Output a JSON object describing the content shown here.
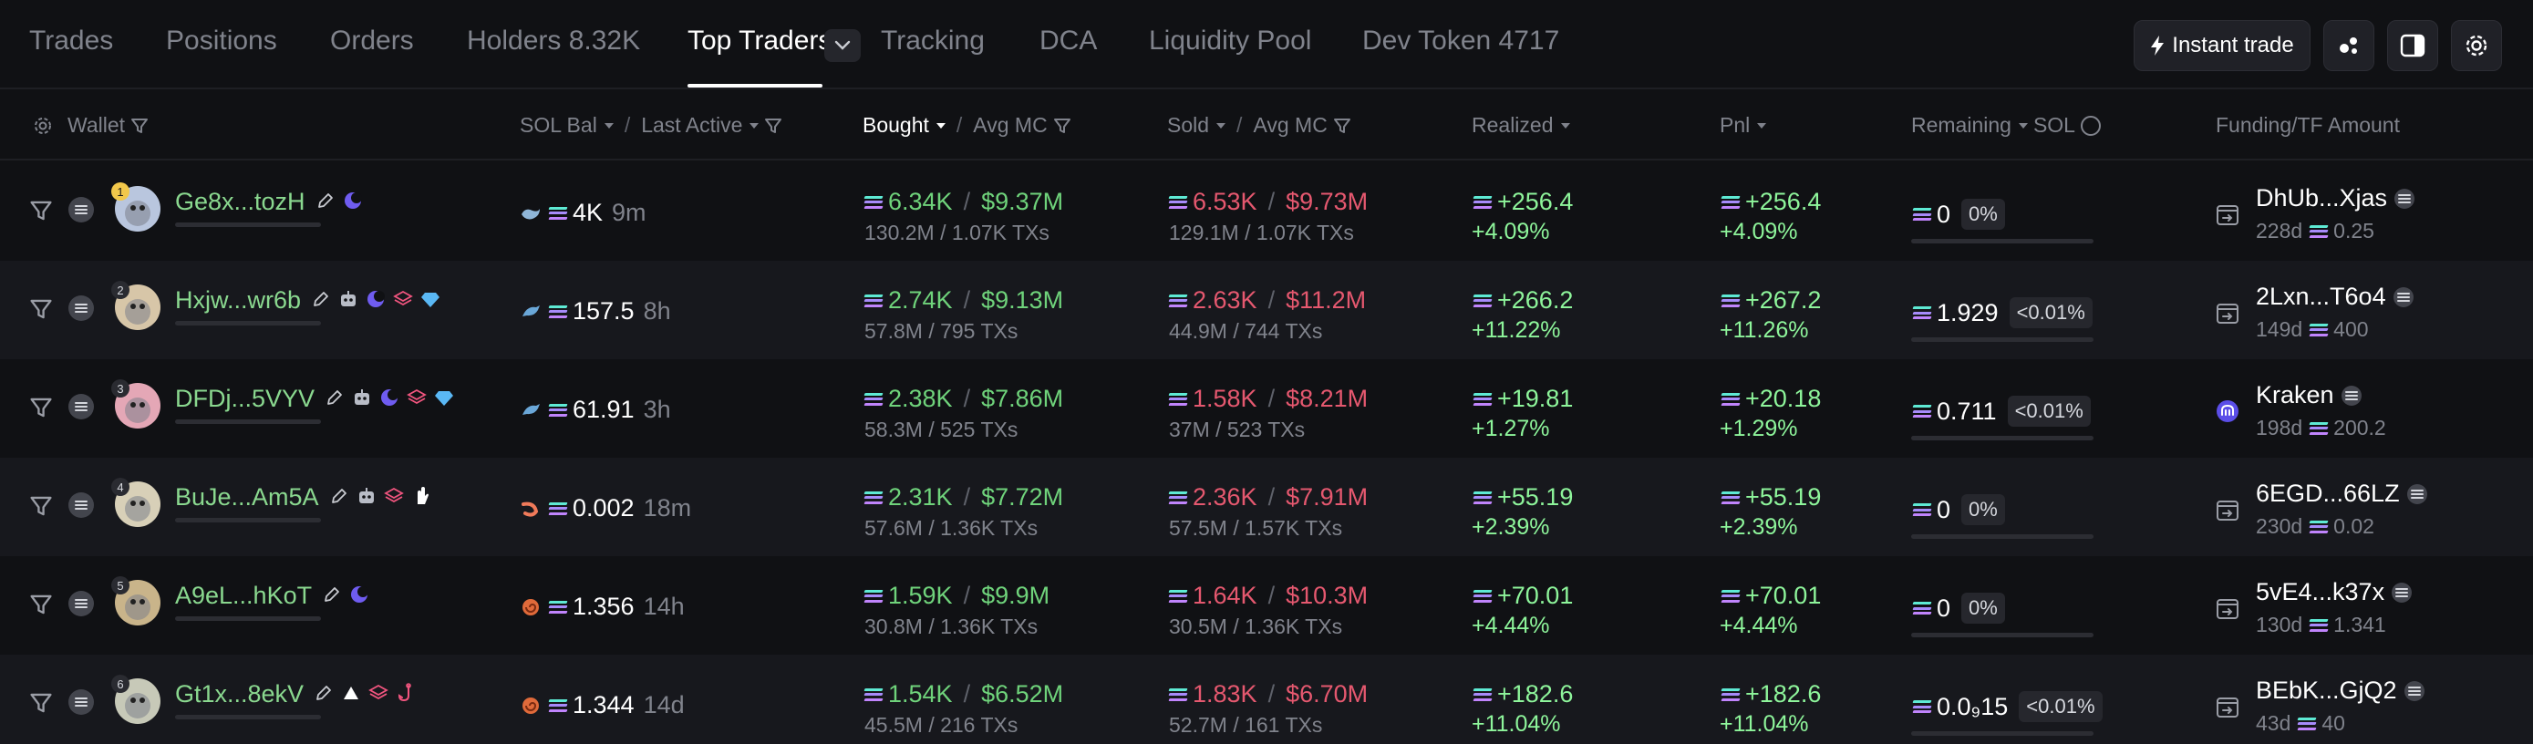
{
  "tabs": [
    {
      "label": "Trades"
    },
    {
      "label": "Positions"
    },
    {
      "label": "Orders"
    },
    {
      "label": "Holders 8.32K"
    },
    {
      "label": "Top Traders"
    },
    {
      "label": "Tracking"
    },
    {
      "label": "DCA"
    },
    {
      "label": "Liquidity Pool"
    },
    {
      "label": "Dev Token 4717"
    }
  ],
  "toolbar": {
    "instant_trade": "Instant trade"
  },
  "columns": {
    "wallet": "Wallet",
    "sol_bal": "SOL Bal",
    "last_active": "Last Active",
    "bought": "Bought",
    "avg_mc": "Avg MC",
    "sold": "Sold",
    "realized": "Realized",
    "pnl": "Pnl",
    "remaining": "Remaining",
    "sol": "SOL",
    "funding": "Funding/TF Amount"
  },
  "colors": {
    "green": "#6fd37b",
    "red": "#e5586f",
    "wallet": "#8ad88f",
    "pnl": "#8ef59b"
  },
  "rows": [
    {
      "rank": "1",
      "wallet": "Ge8x...tozH",
      "tags": [
        "edit-icon",
        "moon-icon"
      ],
      "bal_icon": "whale-icon",
      "bal": "4K",
      "last": "9m",
      "bought": "6.34K",
      "bought_mc": "$9.37M",
      "bought_sub": "130.2M / 1.07K TXs",
      "sold": "6.53K",
      "sold_mc": "$9.73M",
      "sold_sub": "129.1M / 1.07K TXs",
      "realized": "+256.4",
      "realized_pct": "+4.09%",
      "pnl": "+256.4",
      "pnl_pct": "+4.09%",
      "remaining": "0",
      "remaining_pct": "0%",
      "fund_icon": "transfer-icon",
      "fund_name": "DhUb...Xjas",
      "fund_age": "228d",
      "fund_amt": "0.25"
    },
    {
      "rank": "2",
      "wallet": "Hxjw...wr6b",
      "tags": [
        "edit-icon",
        "bot-icon",
        "moon-icon",
        "layers-icon",
        "diamond-icon"
      ],
      "bal_icon": "dolphin-icon",
      "bal": "157.5",
      "last": "8h",
      "bought": "2.74K",
      "bought_mc": "$9.13M",
      "bought_sub": "57.8M / 795 TXs",
      "sold": "2.63K",
      "sold_mc": "$11.2M",
      "sold_sub": "44.9M / 744 TXs",
      "realized": "+266.2",
      "realized_pct": "+11.22%",
      "pnl": "+267.2",
      "pnl_pct": "+11.26%",
      "remaining": "1.929",
      "remaining_pct": "<0.01%",
      "fund_icon": "transfer-icon",
      "fund_name": "2Lxn...T6o4",
      "fund_age": "149d",
      "fund_amt": "400"
    },
    {
      "rank": "3",
      "wallet": "DFDj...5VYV",
      "tags": [
        "edit-icon",
        "bot-icon",
        "moon-icon",
        "layers-icon",
        "diamond-icon"
      ],
      "bal_icon": "dolphin-icon",
      "bal": "61.91",
      "last": "3h",
      "bought": "2.38K",
      "bought_mc": "$7.86M",
      "bought_sub": "58.3M / 525 TXs",
      "sold": "1.58K",
      "sold_mc": "$8.21M",
      "sold_sub": "37M / 523 TXs",
      "realized": "+19.81",
      "realized_pct": "+1.27%",
      "pnl": "+20.18",
      "pnl_pct": "+1.29%",
      "remaining": "0.711",
      "remaining_pct": "<0.01%",
      "fund_icon": "kraken-icon",
      "fund_name": "Kraken",
      "fund_age": "198d",
      "fund_amt": "200.2"
    },
    {
      "rank": "4",
      "wallet": "BuJe...Am5A",
      "tags": [
        "edit-icon",
        "bot-icon",
        "layers-icon",
        "paper-hand-icon"
      ],
      "bal_icon": "shrimp-icon",
      "bal": "0.002",
      "last": "18m",
      "bought": "2.31K",
      "bought_mc": "$7.72M",
      "bought_sub": "57.6M / 1.36K TXs",
      "sold": "2.36K",
      "sold_mc": "$7.91M",
      "sold_sub": "57.5M / 1.57K TXs",
      "realized": "+55.19",
      "realized_pct": "+2.39%",
      "pnl": "+55.19",
      "pnl_pct": "+2.39%",
      "remaining": "0",
      "remaining_pct": "0%",
      "fund_icon": "transfer-icon",
      "fund_name": "6EGD...66LZ",
      "fund_age": "230d",
      "fund_amt": "0.02"
    },
    {
      "rank": "5",
      "wallet": "A9eL...hKoT",
      "tags": [
        "edit-icon",
        "moon-icon"
      ],
      "bal_icon": "shell-icon",
      "bal": "1.356",
      "last": "14h",
      "bought": "1.59K",
      "bought_mc": "$9.9M",
      "bought_sub": "30.8M / 1.36K TXs",
      "sold": "1.64K",
      "sold_mc": "$10.3M",
      "sold_sub": "30.5M / 1.36K TXs",
      "realized": "+70.01",
      "realized_pct": "+4.44%",
      "pnl": "+70.01",
      "pnl_pct": "+4.44%",
      "remaining": "0",
      "remaining_pct": "0%",
      "fund_icon": "transfer-icon",
      "fund_name": "5vE4...k37x",
      "fund_age": "130d",
      "fund_amt": "1.341"
    },
    {
      "rank": "6",
      "wallet": "Gt1x...8ekV",
      "tags": [
        "edit-icon",
        "triangle-icon",
        "layers-icon",
        "fishing-hook-icon"
      ],
      "bal_icon": "shell-icon",
      "bal": "1.344",
      "last": "14d",
      "bought": "1.54K",
      "bought_mc": "$6.52M",
      "bought_sub": "45.5M / 216 TXs",
      "sold": "1.83K",
      "sold_mc": "$6.70M",
      "sold_sub": "52.7M / 161 TXs",
      "realized": "+182.6",
      "realized_pct": "+11.04%",
      "pnl": "+182.6",
      "pnl_pct": "+11.04%",
      "remaining": "0.0₉15",
      "remaining_pct": "<0.01%",
      "fund_icon": "transfer-icon",
      "fund_name": "BEbK...GjQ2",
      "fund_age": "43d",
      "fund_amt": "40"
    }
  ]
}
